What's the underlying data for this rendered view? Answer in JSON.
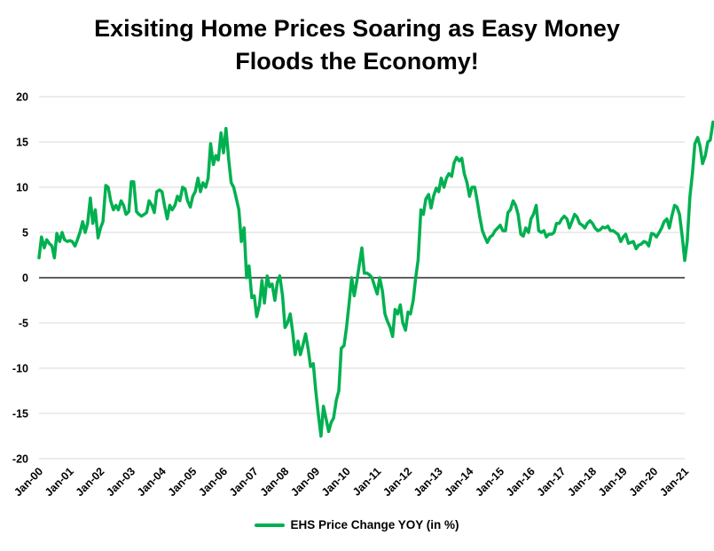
{
  "chart_data": {
    "type": "line",
    "title_line1": "Exisiting Home Prices Soaring as Easy Money",
    "title_line2": "Floods the Economy!",
    "xlabel": "",
    "ylabel": "",
    "ylim": [
      -20,
      20
    ],
    "y_ticks": [
      "20",
      "15",
      "10",
      "5",
      "0",
      "-5",
      "-10",
      "-15",
      "-20"
    ],
    "categories": [
      "Jan-00",
      "Jan-01",
      "Jan-02",
      "Jan-03",
      "Jan-04",
      "Jan-05",
      "Jan-06",
      "Jan-07",
      "Jan-08",
      "Jan-09",
      "Jan-10",
      "Jan-11",
      "Jan-12",
      "Jan-13",
      "Jan-14",
      "Jan-15",
      "Jan-16",
      "Jan-17",
      "Jan-18",
      "Jan-19",
      "Jan-20",
      "Jan-21"
    ],
    "grid": true,
    "legend_position": "bottom",
    "series": [
      {
        "name": "EHS Price Change YOY (in %)",
        "color": "#00b050",
        "points": [
          [
            0.0,
            2.2
          ],
          [
            0.08,
            4.5
          ],
          [
            0.17,
            3.3
          ],
          [
            0.25,
            4.2
          ],
          [
            0.33,
            3.8
          ],
          [
            0.42,
            3.5
          ],
          [
            0.5,
            2.2
          ],
          [
            0.58,
            4.9
          ],
          [
            0.67,
            4.0
          ],
          [
            0.75,
            5.0
          ],
          [
            0.83,
            4.2
          ],
          [
            0.92,
            4.0
          ],
          [
            1.0,
            4.1
          ],
          [
            1.08,
            4.0
          ],
          [
            1.17,
            3.5
          ],
          [
            1.25,
            4.2
          ],
          [
            1.33,
            5.0
          ],
          [
            1.42,
            6.2
          ],
          [
            1.5,
            5.0
          ],
          [
            1.58,
            6.0
          ],
          [
            1.67,
            8.8
          ],
          [
            1.75,
            6.0
          ],
          [
            1.83,
            7.5
          ],
          [
            1.92,
            4.4
          ],
          [
            2.0,
            5.5
          ],
          [
            2.08,
            6.2
          ],
          [
            2.17,
            10.2
          ],
          [
            2.25,
            10.0
          ],
          [
            2.33,
            8.5
          ],
          [
            2.42,
            7.5
          ],
          [
            2.5,
            8.0
          ],
          [
            2.58,
            7.5
          ],
          [
            2.67,
            8.5
          ],
          [
            2.75,
            8.0
          ],
          [
            2.83,
            7.0
          ],
          [
            2.92,
            7.3
          ],
          [
            3.0,
            10.6
          ],
          [
            3.08,
            10.6
          ],
          [
            3.17,
            7.3
          ],
          [
            3.25,
            7.0
          ],
          [
            3.33,
            6.8
          ],
          [
            3.42,
            7.0
          ],
          [
            3.5,
            7.2
          ],
          [
            3.58,
            8.5
          ],
          [
            3.67,
            8.0
          ],
          [
            3.75,
            7.2
          ],
          [
            3.83,
            9.5
          ],
          [
            3.92,
            9.7
          ],
          [
            4.0,
            9.5
          ],
          [
            4.08,
            8.0
          ],
          [
            4.17,
            6.5
          ],
          [
            4.25,
            8.0
          ],
          [
            4.33,
            7.5
          ],
          [
            4.42,
            8.0
          ],
          [
            4.5,
            9.0
          ],
          [
            4.58,
            8.5
          ],
          [
            4.67,
            10.0
          ],
          [
            4.75,
            9.8
          ],
          [
            4.83,
            8.5
          ],
          [
            4.92,
            7.8
          ],
          [
            5.0,
            9.0
          ],
          [
            5.08,
            9.5
          ],
          [
            5.17,
            11.0
          ],
          [
            5.25,
            9.5
          ],
          [
            5.33,
            10.5
          ],
          [
            5.42,
            10.0
          ],
          [
            5.5,
            11.0
          ],
          [
            5.58,
            14.8
          ],
          [
            5.67,
            12.5
          ],
          [
            5.75,
            13.5
          ],
          [
            5.83,
            13.0
          ],
          [
            5.92,
            16.0
          ],
          [
            6.0,
            13.8
          ],
          [
            6.08,
            16.5
          ],
          [
            6.17,
            13.0
          ],
          [
            6.25,
            10.5
          ],
          [
            6.33,
            10.0
          ],
          [
            6.42,
            8.7
          ],
          [
            6.5,
            7.5
          ],
          [
            6.58,
            4.0
          ],
          [
            6.67,
            5.5
          ],
          [
            6.75,
            0.0
          ],
          [
            6.83,
            1.3
          ],
          [
            6.92,
            -2.2
          ],
          [
            7.0,
            -2.0
          ],
          [
            7.08,
            -4.3
          ],
          [
            7.17,
            -3.0
          ],
          [
            7.25,
            -0.3
          ],
          [
            7.33,
            -2.8
          ],
          [
            7.42,
            0.2
          ],
          [
            7.5,
            -1.0
          ],
          [
            7.58,
            -0.7
          ],
          [
            7.67,
            -2.5
          ],
          [
            7.75,
            -0.5
          ],
          [
            7.83,
            0.2
          ],
          [
            7.92,
            -2.0
          ],
          [
            8.0,
            -5.5
          ],
          [
            8.08,
            -5.0
          ],
          [
            8.17,
            -4.0
          ],
          [
            8.25,
            -6.0
          ],
          [
            8.33,
            -8.5
          ],
          [
            8.42,
            -7.0
          ],
          [
            8.5,
            -8.5
          ],
          [
            8.58,
            -7.5
          ],
          [
            8.67,
            -6.2
          ],
          [
            8.75,
            -7.8
          ],
          [
            8.83,
            -9.8
          ],
          [
            8.92,
            -9.5
          ],
          [
            9.0,
            -12.5
          ],
          [
            9.08,
            -15.0
          ],
          [
            9.17,
            -17.5
          ],
          [
            9.25,
            -14.2
          ],
          [
            9.33,
            -15.5
          ],
          [
            9.42,
            -17.0
          ],
          [
            9.5,
            -16.0
          ],
          [
            9.58,
            -15.5
          ],
          [
            9.67,
            -13.5
          ],
          [
            9.75,
            -12.5
          ],
          [
            9.83,
            -7.8
          ],
          [
            9.92,
            -7.5
          ],
          [
            10.0,
            -5.5
          ],
          [
            10.08,
            -3.0
          ],
          [
            10.17,
            0.0
          ],
          [
            10.25,
            -2.0
          ],
          [
            10.33,
            -0.5
          ],
          [
            10.42,
            1.5
          ],
          [
            10.5,
            3.3
          ],
          [
            10.58,
            0.5
          ],
          [
            10.67,
            0.5
          ],
          [
            10.75,
            0.3
          ],
          [
            10.83,
            0.0
          ],
          [
            10.92,
            -1.0
          ],
          [
            11.0,
            -1.8
          ],
          [
            11.08,
            0.0
          ],
          [
            11.17,
            -1.5
          ],
          [
            11.25,
            -4.0
          ],
          [
            11.33,
            -4.8
          ],
          [
            11.42,
            -5.5
          ],
          [
            11.5,
            -6.5
          ],
          [
            11.58,
            -3.5
          ],
          [
            11.67,
            -4.0
          ],
          [
            11.75,
            -3.0
          ],
          [
            11.83,
            -5.0
          ],
          [
            11.92,
            -5.8
          ],
          [
            12.0,
            -3.8
          ],
          [
            12.08,
            -4.0
          ],
          [
            12.17,
            -2.5
          ],
          [
            12.25,
            0.0
          ],
          [
            12.33,
            2.0
          ],
          [
            12.42,
            7.5
          ],
          [
            12.5,
            7.0
          ],
          [
            12.58,
            8.7
          ],
          [
            12.67,
            9.2
          ],
          [
            12.75,
            7.7
          ],
          [
            12.83,
            9.0
          ],
          [
            12.92,
            9.9
          ],
          [
            13.0,
            9.5
          ],
          [
            13.08,
            11.0
          ],
          [
            13.17,
            10.0
          ],
          [
            13.25,
            11.0
          ],
          [
            13.33,
            11.5
          ],
          [
            13.42,
            11.2
          ],
          [
            13.5,
            12.7
          ],
          [
            13.58,
            13.3
          ],
          [
            13.67,
            12.9
          ],
          [
            13.75,
            13.2
          ],
          [
            13.83,
            11.5
          ],
          [
            13.92,
            10.5
          ],
          [
            14.0,
            9.0
          ],
          [
            14.08,
            10.0
          ],
          [
            14.17,
            10.0
          ],
          [
            14.25,
            8.5
          ],
          [
            14.33,
            6.8
          ],
          [
            14.42,
            5.2
          ],
          [
            14.5,
            4.5
          ],
          [
            14.58,
            3.9
          ],
          [
            14.67,
            4.5
          ],
          [
            14.75,
            4.7
          ],
          [
            14.83,
            5.2
          ],
          [
            14.92,
            5.5
          ],
          [
            15.0,
            5.8
          ],
          [
            15.08,
            5.2
          ],
          [
            15.17,
            5.2
          ],
          [
            15.25,
            7.2
          ],
          [
            15.33,
            7.5
          ],
          [
            15.42,
            8.5
          ],
          [
            15.5,
            8.0
          ],
          [
            15.58,
            7.0
          ],
          [
            15.67,
            4.8
          ],
          [
            15.75,
            4.6
          ],
          [
            15.83,
            5.5
          ],
          [
            15.92,
            5.0
          ],
          [
            16.0,
            6.5
          ],
          [
            16.08,
            7.0
          ],
          [
            16.17,
            8.0
          ],
          [
            16.25,
            5.2
          ],
          [
            16.33,
            5.0
          ],
          [
            16.42,
            5.2
          ],
          [
            16.5,
            4.5
          ],
          [
            16.58,
            4.8
          ],
          [
            16.67,
            4.8
          ],
          [
            16.75,
            5.0
          ],
          [
            16.83,
            6.0
          ],
          [
            16.92,
            6.0
          ],
          [
            17.0,
            6.5
          ],
          [
            17.08,
            6.8
          ],
          [
            17.17,
            6.5
          ],
          [
            17.25,
            5.5
          ],
          [
            17.33,
            6.2
          ],
          [
            17.42,
            7.0
          ],
          [
            17.5,
            6.7
          ],
          [
            17.58,
            6.0
          ],
          [
            17.67,
            5.8
          ],
          [
            17.75,
            5.5
          ],
          [
            17.83,
            6.0
          ],
          [
            17.92,
            6.3
          ],
          [
            18.0,
            6.0
          ],
          [
            18.08,
            5.5
          ],
          [
            18.17,
            5.2
          ],
          [
            18.25,
            5.3
          ],
          [
            18.33,
            5.6
          ],
          [
            18.42,
            5.5
          ],
          [
            18.5,
            5.7
          ],
          [
            18.58,
            5.2
          ],
          [
            18.67,
            5.2
          ],
          [
            18.75,
            5.0
          ],
          [
            18.83,
            4.8
          ],
          [
            18.92,
            4.0
          ],
          [
            19.0,
            4.5
          ],
          [
            19.08,
            4.8
          ],
          [
            19.17,
            3.8
          ],
          [
            19.25,
            3.9
          ],
          [
            19.33,
            4.0
          ],
          [
            19.42,
            3.2
          ],
          [
            19.5,
            3.6
          ],
          [
            19.58,
            3.7
          ],
          [
            19.67,
            4.0
          ],
          [
            19.75,
            3.9
          ],
          [
            19.83,
            3.5
          ],
          [
            19.92,
            4.9
          ],
          [
            20.0,
            4.8
          ],
          [
            20.08,
            4.5
          ],
          [
            20.17,
            5.0
          ],
          [
            20.25,
            5.5
          ],
          [
            20.33,
            6.2
          ],
          [
            20.42,
            6.5
          ],
          [
            20.5,
            5.5
          ],
          [
            20.58,
            6.8
          ],
          [
            20.67,
            8.0
          ],
          [
            20.75,
            7.8
          ],
          [
            20.83,
            7.0
          ],
          [
            20.92,
            4.5
          ],
          [
            21.0,
            1.9
          ],
          [
            21.08,
            4.0
          ],
          [
            21.17,
            9.0
          ],
          [
            21.25,
            11.5
          ],
          [
            21.33,
            14.8
          ],
          [
            21.42,
            15.5
          ],
          [
            21.5,
            14.5
          ],
          [
            21.58,
            12.6
          ],
          [
            21.67,
            13.5
          ],
          [
            21.75,
            15.0
          ],
          [
            21.83,
            15.2
          ],
          [
            21.92,
            17.2
          ]
        ]
      }
    ]
  }
}
